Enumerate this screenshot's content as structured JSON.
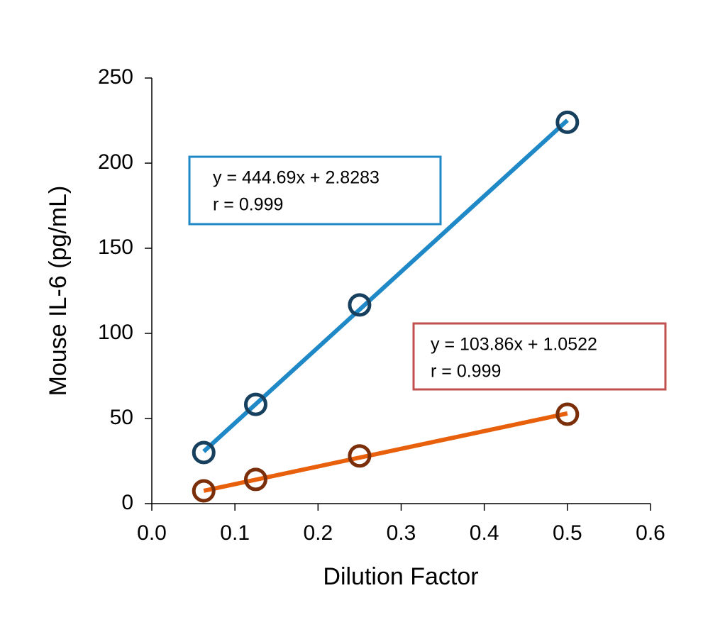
{
  "chart_data": {
    "type": "scatter",
    "x_label": "Dilution Factor",
    "y_label": "Mouse IL-6 (pg/mL)",
    "xlim": [
      0,
      0.6
    ],
    "xticks": [
      {
        "value": 0,
        "label": "0.0"
      },
      0.1,
      0.2,
      0.3,
      0.4,
      0.5,
      0.6
    ],
    "ylim": [
      0,
      250
    ],
    "yticks": [
      0,
      50,
      100,
      150,
      200,
      250
    ],
    "series": [
      {
        "color": "#17405f",
        "line_color": "#1f88c6",
        "box_color": "#1f88c6",
        "x": [
          0.0625,
          0.125,
          0.25,
          0.5
        ],
        "values": [
          30,
          58.3,
          116.7,
          224
        ],
        "trendline": {
          "slope": 444.69,
          "intercept": 2.8283
        },
        "annotation": [
          "y = 444.69x + 2.8283",
          "r = 0.999"
        ]
      },
      {
        "color": "#7a2e0a",
        "line_color": "#e8600c",
        "box_color": "#c0504d",
        "x": [
          0.0625,
          0.125,
          0.25,
          0.5
        ],
        "values": [
          7.5,
          14.2,
          28,
          52.5
        ],
        "trendline": {
          "slope": 103.86,
          "intercept": 1.0522
        },
        "annotation": [
          "y = 103.86x + 1.0522",
          "r = 0.999"
        ]
      }
    ]
  }
}
